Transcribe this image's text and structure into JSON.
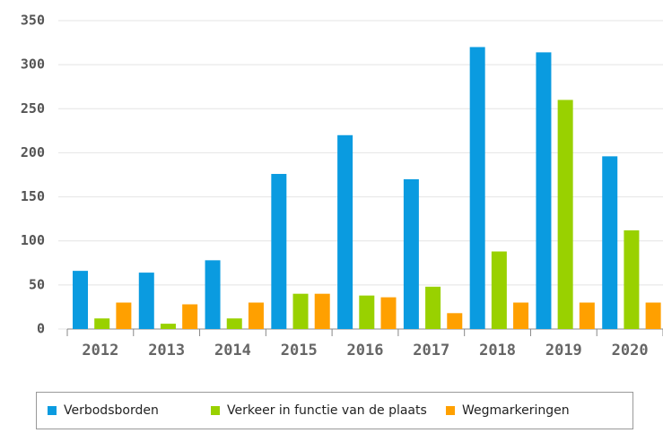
{
  "chart_data": {
    "type": "bar",
    "categories": [
      "2012",
      "2013",
      "2014",
      "2015",
      "2016",
      "2017",
      "2018",
      "2019",
      "2020"
    ],
    "series": [
      {
        "name": "Verbodsborden",
        "color": "#0a9be0",
        "values": [
          66,
          64,
          78,
          176,
          220,
          170,
          320,
          314,
          196
        ]
      },
      {
        "name": "Verkeer in functie van de plaats",
        "color": "#99d100",
        "values": [
          12,
          6,
          12,
          40,
          38,
          48,
          88,
          260,
          112
        ]
      },
      {
        "name": "Wegmarkeringen",
        "color": "#ffa000",
        "values": [
          30,
          28,
          30,
          40,
          36,
          18,
          30,
          30,
          30
        ]
      }
    ],
    "ylim": [
      0,
      350
    ],
    "yticks": [
      0,
      50,
      100,
      150,
      200,
      250,
      300,
      350
    ],
    "grid": true,
    "legend": "bottom"
  }
}
